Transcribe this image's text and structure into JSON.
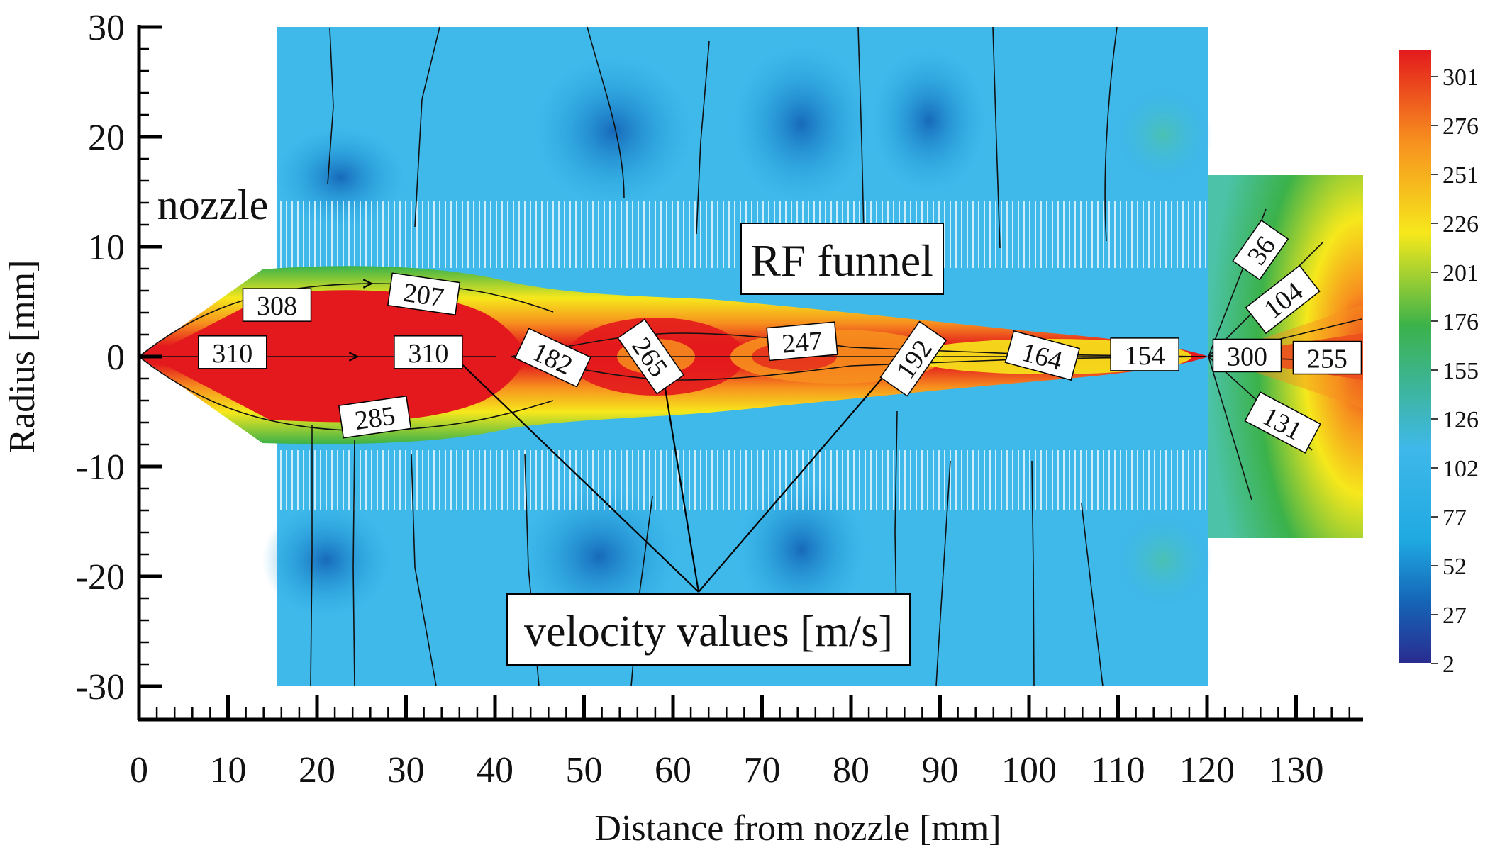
{
  "chart_data": {
    "type": "heatmap",
    "title": "",
    "xlabel": "Distance from nozzle [mm]",
    "ylabel": "Radius [mm]",
    "xlim": [
      0,
      137
    ],
    "ylim": [
      -30,
      30
    ],
    "x_ticks": [
      "0",
      "10",
      "20",
      "30",
      "40",
      "50",
      "60",
      "70",
      "80",
      "90",
      "100",
      "110",
      "120",
      "130"
    ],
    "y_ticks": [
      "30",
      "20",
      "10",
      "0",
      "-10",
      "-20",
      "-30"
    ],
    "colorbar": {
      "ticks": [
        "301",
        "276",
        "251",
        "226",
        "201",
        "176",
        "155",
        "126",
        "102",
        "77",
        "52",
        "27",
        "2"
      ],
      "range": [
        2,
        301
      ]
    },
    "colors": {
      "red": "#e3191d",
      "orange": "#f7901e",
      "yellow": "#f6e81c",
      "green": "#3bb24a",
      "cyan": "#3fb8ea",
      "light_blue": "#1fa9e1",
      "dark_blue": "#1565b7",
      "navy": "#2a2c8f"
    },
    "annotations": {
      "nozzle": "nozzle",
      "funnel": "RF funnel",
      "velocity": "velocity values [m/s]"
    },
    "velocity_labels": [
      {
        "text": "308",
        "x": 15.5,
        "y": 4.7,
        "angle": 0
      },
      {
        "text": "207",
        "x": 32,
        "y": 5.7,
        "angle": 8
      },
      {
        "text": "310",
        "x": 10.5,
        "y": 0.4,
        "angle": 0
      },
      {
        "text": "310",
        "x": 32.5,
        "y": 0.4,
        "angle": 0
      },
      {
        "text": "285",
        "x": 26.5,
        "y": -5.5,
        "angle": -8
      },
      {
        "text": "182",
        "x": 46.5,
        "y": -0.1,
        "angle": 25
      },
      {
        "text": "265",
        "x": 57.5,
        "y": 0.0,
        "angle": 55
      },
      {
        "text": "247",
        "x": 74.5,
        "y": 1.4,
        "angle": -5
      },
      {
        "text": "192",
        "x": 87,
        "y": -0.2,
        "angle": -55
      },
      {
        "text": "164",
        "x": 101.5,
        "y": 0.1,
        "angle": 15
      },
      {
        "text": "154",
        "x": 113,
        "y": 0.2,
        "angle": 0
      },
      {
        "text": "300",
        "x": 124.5,
        "y": 0.1,
        "angle": 0
      },
      {
        "text": "255",
        "x": 133.5,
        "y": -0.1,
        "angle": 0
      },
      {
        "text": "36",
        "x": 126,
        "y": 9.7,
        "angle": -55
      },
      {
        "text": "104",
        "x": 128.5,
        "y": 5.2,
        "angle": -38
      },
      {
        "text": "131",
        "x": 128.5,
        "y": -6.0,
        "angle": 28
      }
    ]
  }
}
